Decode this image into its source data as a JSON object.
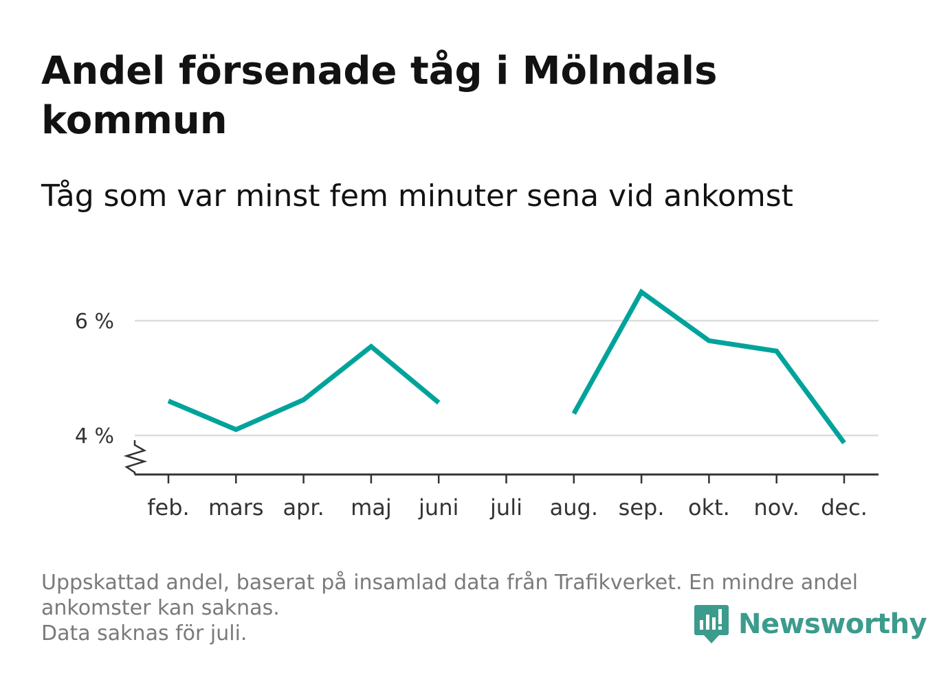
{
  "header": {
    "title": "Andel försenade tåg i Mölndals kommun",
    "subtitle": "Tåg som var minst fem minuter sena vid ankomst"
  },
  "footer": {
    "note_line1": "Uppskattad andel, baserat på insamlad data från Trafikverket. En mindre andel",
    "note_line2": "ankomster kan saknas.",
    "note_line3": "Data saknas för juli."
  },
  "brand": {
    "name": "Newsworthy",
    "color": "#3c9b8c"
  },
  "chart_data": {
    "type": "line",
    "categories": [
      "feb.",
      "mars",
      "apr.",
      "maj",
      "juni",
      "juli",
      "aug.",
      "sep.",
      "okt.",
      "nov.",
      "dec."
    ],
    "series": [
      {
        "values": [
          4.6,
          4.1,
          4.62,
          5.55,
          4.57,
          null,
          4.38,
          6.5,
          5.65,
          5.47,
          3.87
        ],
        "color": "#00a39b"
      }
    ],
    "yticks": [
      {
        "value": 4,
        "label": "4 %"
      },
      {
        "value": 6,
        "label": "6 %"
      }
    ],
    "ylim": [
      3.3,
      6.7
    ],
    "grid": true,
    "y_axis_break": true
  }
}
